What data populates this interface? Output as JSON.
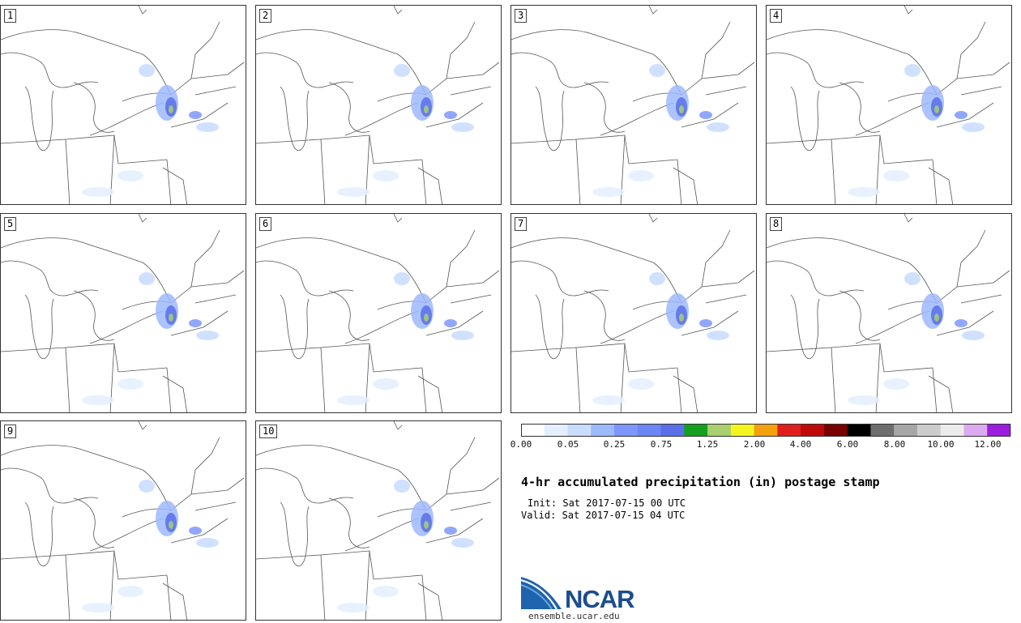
{
  "panels": [
    {
      "label": "1"
    },
    {
      "label": "2"
    },
    {
      "label": "3"
    },
    {
      "label": "4"
    },
    {
      "label": "5"
    },
    {
      "label": "6"
    },
    {
      "label": "7"
    },
    {
      "label": "8"
    },
    {
      "label": "9"
    },
    {
      "label": "10"
    }
  ],
  "colorbar": {
    "colors": [
      "#ffffff",
      "#e3efff",
      "#c7dcff",
      "#9db9ff",
      "#7d97ff",
      "#6b86f7",
      "#5a6fe8",
      "#14a01e",
      "#a8cf70",
      "#f5f51e",
      "#f5a00f",
      "#e01e1e",
      "#bf0a0a",
      "#7a0000",
      "#000000",
      "#6e6e6e",
      "#a6a6a6",
      "#cccccc",
      "#ececec",
      "#dcaaf0",
      "#9b1ee0"
    ],
    "tick_labels": [
      "0.00",
      "0.05",
      "0.25",
      "0.75",
      "1.25",
      "2.00",
      "4.00",
      "6.00",
      "8.00",
      "10.00",
      "12.00"
    ]
  },
  "title": "4-hr accumulated precipitation (in) postage stamp",
  "init": "Init: Sat 2017-07-15 00 UTC",
  "valid": "Valid: Sat 2017-07-15 04 UTC",
  "logo": {
    "name": "NCAR",
    "url": "ensemble.ucar.edu"
  }
}
